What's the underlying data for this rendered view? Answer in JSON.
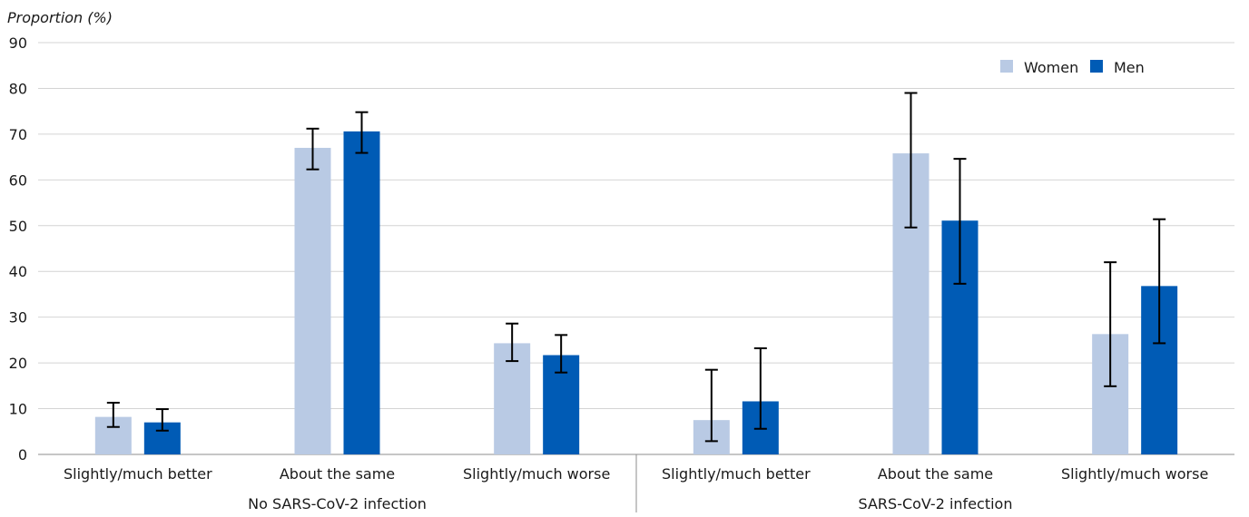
{
  "chart_data": {
    "type": "bar",
    "ylabel": "Proportion (%)",
    "ylim": [
      0,
      90
    ],
    "yticks": [
      0,
      10,
      20,
      30,
      40,
      50,
      60,
      70,
      80,
      90
    ],
    "grid": true,
    "legend_position": "top-right",
    "groups": [
      {
        "label": "No SARS-CoV-2 infection",
        "categories": [
          "Slightly/much better",
          "About the same",
          "Slightly/much worse"
        ]
      },
      {
        "label": "SARS-CoV-2 infection",
        "categories": [
          "Slightly/much better",
          "About the same",
          "Slightly/much worse"
        ]
      }
    ],
    "series": [
      {
        "name": "Women",
        "color": "#b9cae4",
        "values": [
          8.2,
          67.0,
          24.3,
          7.5,
          65.8,
          26.3
        ],
        "ci_low": [
          6.0,
          62.3,
          20.4,
          2.9,
          49.6,
          14.9
        ],
        "ci_high": [
          11.3,
          71.2,
          28.6,
          18.5,
          79.0,
          42.0
        ]
      },
      {
        "name": "Men",
        "color": "#005bb5",
        "values": [
          7.0,
          70.6,
          21.7,
          11.6,
          51.1,
          36.8
        ],
        "ci_low": [
          5.2,
          65.9,
          17.9,
          5.6,
          37.3,
          24.3
        ],
        "ci_high": [
          9.9,
          74.8,
          26.1,
          23.2,
          64.6,
          51.4
        ]
      }
    ]
  }
}
